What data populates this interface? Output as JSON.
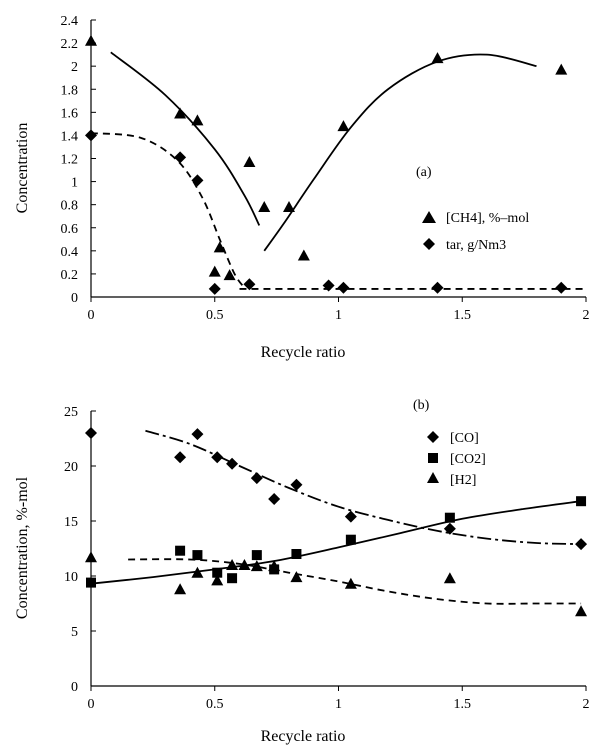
{
  "chart_data": [
    {
      "panel_label": "(a)",
      "type": "scatter",
      "xlabel": "Recycle ratio",
      "ylabel": "Concentration",
      "xlim": [
        0,
        2
      ],
      "ylim": [
        0,
        2.4
      ],
      "xticks": [
        "0",
        "0.5",
        "1",
        "1.5",
        "2"
      ],
      "yticks": [
        "0",
        "0.2",
        "0.4",
        "0.6",
        "0.8",
        "1",
        "1.2",
        "1.4",
        "1.6",
        "1.8",
        "2",
        "2.2",
        "2.4"
      ],
      "legend_position": "right",
      "series": [
        {
          "name": "[CH4], %–mol",
          "marker": "triangle",
          "points": [
            [
              0,
              2.22
            ],
            [
              0.36,
              1.59
            ],
            [
              0.43,
              1.53
            ],
            [
              0.52,
              0.43
            ],
            [
              0.5,
              0.22
            ],
            [
              0.56,
              0.19
            ],
            [
              0.64,
              1.17
            ],
            [
              0.7,
              0.78
            ],
            [
              0.8,
              0.78
            ],
            [
              0.86,
              0.36
            ],
            [
              1.02,
              1.48
            ],
            [
              1.4,
              2.07
            ],
            [
              1.9,
              1.97
            ]
          ],
          "fit_segments": [
            {
              "style": "solid",
              "points": [
                [
                  0.08,
                  2.12
                ],
                [
                  0.3,
                  1.75
                ],
                [
                  0.5,
                  1.28
                ],
                [
                  0.62,
                  0.88
                ],
                [
                  0.68,
                  0.62
                ]
              ]
            },
            {
              "style": "solid",
              "points": [
                [
                  0.7,
                  0.4
                ],
                [
                  0.78,
                  0.64
                ],
                [
                  0.9,
                  1.02
                ],
                [
                  1.05,
                  1.47
                ],
                [
                  1.2,
                  1.8
                ],
                [
                  1.4,
                  2.04
                ],
                [
                  1.6,
                  2.1
                ],
                [
                  1.8,
                  2.0
                ]
              ]
            }
          ]
        },
        {
          "name": "tar, g/Nm3",
          "marker": "diamond",
          "points": [
            [
              0,
              1.4
            ],
            [
              0.36,
              1.21
            ],
            [
              0.43,
              1.01
            ],
            [
              0.5,
              0.07
            ],
            [
              0.64,
              0.11
            ],
            [
              0.96,
              0.1
            ],
            [
              1.02,
              0.08
            ],
            [
              1.4,
              0.08
            ],
            [
              1.9,
              0.08
            ]
          ],
          "fit_segments": [
            {
              "style": "dashed",
              "points": [
                [
                  0,
                  1.42
                ],
                [
                  0.2,
                  1.38
                ],
                [
                  0.35,
                  1.18
                ],
                [
                  0.45,
                  0.86
                ],
                [
                  0.52,
                  0.5
                ],
                [
                  0.58,
                  0.2
                ],
                [
                  0.62,
                  0.08
                ]
              ]
            },
            {
              "style": "dashed",
              "points": [
                [
                  0.6,
                  0.07
                ],
                [
                  1,
                  0.07
                ],
                [
                  1.5,
                  0.07
                ],
                [
                  2,
                  0.07
                ]
              ]
            }
          ]
        }
      ]
    },
    {
      "panel_label": "(b)",
      "type": "scatter",
      "xlabel": "Recycle ratio",
      "ylabel": "Concentration, %-mol",
      "xlim": [
        0,
        2
      ],
      "ylim": [
        0,
        25
      ],
      "xticks": [
        "0",
        "0.5",
        "1",
        "1.5",
        "2"
      ],
      "yticks": [
        "0",
        "5",
        "10",
        "15",
        "20",
        "25"
      ],
      "legend_position": "top-right",
      "series": [
        {
          "name": "[CO]",
          "marker": "diamond",
          "points": [
            [
              0,
              23
            ],
            [
              0.36,
              20.8
            ],
            [
              0.43,
              22.9
            ],
            [
              0.51,
              20.8
            ],
            [
              0.57,
              20.2
            ],
            [
              0.67,
              18.9
            ],
            [
              0.74,
              17
            ],
            [
              0.83,
              18.3
            ],
            [
              1.05,
              15.4
            ],
            [
              1.45,
              14.3
            ],
            [
              1.98,
              12.9
            ]
          ],
          "fit_segments": [
            {
              "style": "dashdot",
              "points": [
                [
                  0.22,
                  23.2
                ],
                [
                  0.4,
                  22.0
                ],
                [
                  0.6,
                  20.0
                ],
                [
                  0.8,
                  18.0
                ],
                [
                  1.0,
                  16.3
                ],
                [
                  1.2,
                  15.1
                ],
                [
                  1.4,
                  14.1
                ],
                [
                  1.6,
                  13.4
                ],
                [
                  1.8,
                  13.0
                ],
                [
                  1.98,
                  12.9
                ]
              ]
            }
          ]
        },
        {
          "name": "[CO2]",
          "marker": "square",
          "points": [
            [
              0,
              9.4
            ],
            [
              0.36,
              12.3
            ],
            [
              0.43,
              11.9
            ],
            [
              0.51,
              10.3
            ],
            [
              0.57,
              9.8
            ],
            [
              0.67,
              11.9
            ],
            [
              0.74,
              10.6
            ],
            [
              0.83,
              12.0
            ],
            [
              1.05,
              13.3
            ],
            [
              1.45,
              15.3
            ],
            [
              1.98,
              16.8
            ]
          ],
          "fit_segments": [
            {
              "style": "solid",
              "points": [
                [
                  0,
                  9.3
                ],
                [
                  0.25,
                  9.9
                ],
                [
                  0.5,
                  10.6
                ],
                [
                  0.75,
                  11.4
                ],
                [
                  1.0,
                  12.6
                ],
                [
                  1.25,
                  13.9
                ],
                [
                  1.5,
                  15.2
                ],
                [
                  1.75,
                  16.1
                ],
                [
                  1.98,
                  16.8
                ]
              ]
            }
          ]
        },
        {
          "name": "[H2]",
          "marker": "triangle",
          "points": [
            [
              0,
              11.7
            ],
            [
              0.36,
              8.8
            ],
            [
              0.43,
              10.3
            ],
            [
              0.51,
              9.6
            ],
            [
              0.57,
              11.0
            ],
            [
              0.62,
              11.0
            ],
            [
              0.67,
              10.9
            ],
            [
              0.74,
              10.9
            ],
            [
              0.83,
              9.9
            ],
            [
              1.05,
              9.3
            ],
            [
              1.45,
              9.8
            ],
            [
              1.98,
              6.8
            ]
          ],
          "fit_segments": [
            {
              "style": "dashed",
              "points": [
                [
                  0.15,
                  11.5
                ],
                [
                  0.4,
                  11.5
                ],
                [
                  0.6,
                  11.1
                ],
                [
                  0.8,
                  10.3
                ],
                [
                  1.0,
                  9.5
                ],
                [
                  1.2,
                  8.6
                ],
                [
                  1.4,
                  7.9
                ],
                [
                  1.6,
                  7.5
                ],
                [
                  1.8,
                  7.5
                ],
                [
                  1.98,
                  7.5
                ]
              ]
            }
          ]
        }
      ]
    }
  ]
}
